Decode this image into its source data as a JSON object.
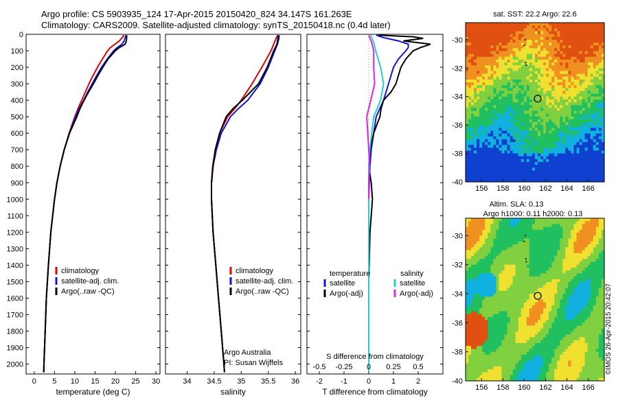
{
  "header": {
    "line1": "Argo profile: CS 5903935_124 17-Apr-2015 20150420_824 34.147S 161.263E",
    "line2": "Climatology: CARS2009. Satellite-adjusted climatology: synTS_20150418.nc (0.4d later)"
  },
  "stamp": "©IMOS 26-Apr-2015 20:42:07",
  "colors": {
    "climatology": "#e00000",
    "satellite": "#1010e0",
    "argo": "#000000",
    "salinity_sat": "#20d0d0",
    "salinity_argo": "#e020e0"
  },
  "chart_data": [
    {
      "type": "line",
      "name": "temperature-profile",
      "xlabel": "temperature (deg C)",
      "ylabel": "",
      "xlim": [
        -2,
        31
      ],
      "ylim": [
        2060,
        0
      ],
      "xticks": [
        "0",
        "5",
        "10",
        "15",
        "20",
        "25",
        "30"
      ],
      "yticks": [
        "0",
        "100",
        "200",
        "300",
        "400",
        "500",
        "600",
        "700",
        "800",
        "900",
        "1000",
        "1100",
        "1200",
        "1300",
        "1400",
        "1500",
        "1600",
        "1700",
        "1800",
        "1900",
        "2000"
      ],
      "legend": [
        "climatology",
        "satellite-adj. clim.",
        "Argo(..raw -QC)"
      ],
      "series": [
        {
          "name": "climatology",
          "color": "#e00000",
          "depth": [
            5,
            20,
            40,
            60,
            80,
            100,
            150,
            200,
            250,
            300,
            350,
            400,
            450,
            500,
            600,
            700,
            800,
            900,
            1000,
            1200,
            1400,
            1600,
            1800,
            2000,
            2050
          ],
          "values": [
            22.1,
            21.7,
            21.0,
            19.9,
            18.8,
            18.1,
            16.8,
            15.6,
            14.5,
            13.5,
            12.6,
            11.7,
            10.8,
            10.0,
            8.6,
            7.4,
            6.4,
            5.6,
            5.0,
            4.1,
            3.5,
            3.0,
            2.7,
            2.4,
            2.35
          ]
        },
        {
          "name": "satellite-adj. clim.",
          "color": "#1010e0",
          "depth": [
            5,
            20,
            40,
            60,
            80,
            100,
            150,
            200,
            250,
            300,
            350,
            400,
            450,
            500,
            600,
            700,
            800,
            900,
            1000,
            1200,
            1400,
            1600,
            1800,
            2000,
            2050
          ],
          "values": [
            22.6,
            22.4,
            22.2,
            21.6,
            20.5,
            19.6,
            18.0,
            16.6,
            15.4,
            14.3,
            13.2,
            12.2,
            11.1,
            10.2,
            8.7,
            7.4,
            6.4,
            5.6,
            5.0,
            4.1,
            3.5,
            3.0,
            2.7,
            2.4,
            2.35
          ]
        },
        {
          "name": "Argo(..raw -QC)",
          "color": "#000000",
          "depth": [
            5,
            20,
            40,
            60,
            80,
            100,
            150,
            200,
            250,
            300,
            350,
            400,
            450,
            500,
            600,
            700,
            800,
            900,
            1000,
            1200,
            1400,
            1600,
            1800,
            2000,
            2050
          ],
          "values": [
            22.8,
            22.8,
            22.7,
            22.4,
            21.0,
            20.0,
            18.2,
            16.9,
            15.7,
            14.6,
            13.4,
            12.3,
            11.3,
            10.5,
            8.7,
            7.4,
            6.4,
            5.6,
            5.0,
            4.1,
            3.5,
            3.0,
            2.7,
            2.4,
            2.35
          ]
        }
      ]
    },
    {
      "type": "line",
      "name": "salinity-profile",
      "xlabel": "salinity",
      "ylabel": "",
      "xlim": [
        33.6,
        36.1
      ],
      "ylim": [
        2060,
        0
      ],
      "xticks": [
        "34",
        "34.5",
        "35",
        "35.5",
        "36"
      ],
      "legend": [
        "climatology",
        "satellite-adj. clim.",
        "Argo(..raw -QC)"
      ],
      "annotations": [
        "Argo Australia",
        "PI: Susan Wijffels"
      ],
      "series": [
        {
          "name": "climatology",
          "color": "#e00000",
          "depth": [
            5,
            20,
            60,
            100,
            200,
            300,
            400,
            450,
            500,
            600,
            700,
            800,
            900,
            1000,
            1200,
            1400,
            1600,
            1800,
            2000,
            2050
          ],
          "values": [
            35.68,
            35.65,
            35.6,
            35.55,
            35.38,
            35.2,
            35.0,
            34.88,
            34.75,
            34.6,
            34.52,
            34.47,
            34.45,
            34.45,
            34.48,
            34.53,
            34.58,
            34.63,
            34.68,
            34.69
          ]
        },
        {
          "name": "satellite-adj. clim.",
          "color": "#1010e0",
          "depth": [
            5,
            20,
            60,
            100,
            200,
            300,
            400,
            450,
            500,
            600,
            700,
            800,
            900,
            1000,
            1200,
            1400,
            1600,
            1800,
            2000,
            2050
          ],
          "values": [
            35.7,
            35.7,
            35.67,
            35.62,
            35.5,
            35.35,
            35.12,
            34.95,
            34.8,
            34.63,
            34.54,
            34.48,
            34.45,
            34.45,
            34.48,
            34.53,
            34.58,
            34.63,
            34.68,
            34.69
          ]
        },
        {
          "name": "Argo(..raw -QC)",
          "color": "#000000",
          "depth": [
            5,
            20,
            60,
            100,
            200,
            300,
            400,
            450,
            500,
            600,
            700,
            800,
            900,
            1000,
            1200,
            1400,
            1600,
            1800,
            2000,
            2050
          ],
          "values": [
            35.68,
            35.68,
            35.66,
            35.6,
            35.48,
            35.32,
            35.02,
            34.85,
            34.72,
            34.6,
            34.52,
            34.48,
            34.45,
            34.45,
            34.48,
            34.53,
            34.58,
            34.63,
            34.68,
            34.69
          ]
        }
      ]
    },
    {
      "type": "line",
      "name": "difference-from-climatology",
      "xlabel": "T difference from climatology",
      "xlabel_top": "S difference from climatology",
      "xlim": [
        -2.5,
        3.0
      ],
      "ylim": [
        2060,
        0
      ],
      "xticks": [
        "-2",
        "-1",
        "0",
        "1",
        "2"
      ],
      "xticks_top": [
        "-0.5",
        "-0.25",
        "0",
        "0.25",
        "0.5"
      ],
      "legend_left_title": "temperature",
      "legend_right_title": "salinity",
      "legend": [
        "satellite",
        "Argo(-adj)",
        "satellite",
        "Argo(-adj)"
      ],
      "series": [
        {
          "name": "satellite",
          "quantity": "temperature",
          "color": "#1010e0",
          "depth": [
            5,
            20,
            40,
            60,
            80,
            100,
            150,
            200,
            250,
            300,
            400,
            500,
            600,
            700,
            800,
            900,
            1000,
            1200,
            1500,
            2000,
            2050
          ],
          "values": [
            0.3,
            0.6,
            1.2,
            1.6,
            1.6,
            1.5,
            1.2,
            1.0,
            0.9,
            0.8,
            0.6,
            0.3,
            0.2,
            0.1,
            0.05,
            0.02,
            0.0,
            0.0,
            0.0,
            0.0,
            0.0
          ]
        },
        {
          "name": "Argo(-adj)",
          "quantity": "temperature",
          "color": "#000000",
          "depth": [
            5,
            15,
            25,
            40,
            60,
            80,
            100,
            150,
            200,
            250,
            300,
            350,
            400,
            450,
            500,
            600,
            700,
            800,
            900,
            1000,
            1200,
            1500,
            2000,
            2050
          ],
          "values": [
            0.4,
            1.8,
            2.2,
            1.4,
            2.5,
            2.1,
            1.8,
            1.5,
            1.3,
            1.2,
            1.1,
            0.9,
            0.6,
            0.5,
            0.45,
            0.2,
            0.05,
            0.0,
            0.1,
            0.15,
            0.05,
            0.0,
            0.0,
            0.0
          ]
        },
        {
          "name": "satellite",
          "quantity": "salinity",
          "color": "#20d0d0",
          "depth": [
            5,
            50,
            100,
            200,
            300,
            400,
            500,
            600,
            700,
            800,
            900,
            1000,
            1200,
            1500,
            2000,
            2050
          ],
          "values": [
            0.02,
            0.05,
            0.07,
            0.12,
            0.15,
            0.12,
            0.05,
            0.03,
            0.01,
            0.0,
            0.0,
            0.0,
            0.0,
            0.0,
            0.0,
            0.0
          ]
        },
        {
          "name": "Argo(-adj)",
          "quantity": "salinity",
          "color": "#e020e0",
          "depth": [
            5,
            50,
            100,
            200,
            300,
            400,
            500,
            600,
            700,
            800,
            900,
            1000
          ],
          "values": [
            0.0,
            0.03,
            0.05,
            0.05,
            0.06,
            0.02,
            -0.02,
            -0.01,
            0.0,
            0.01,
            0.0,
            0.0
          ]
        }
      ]
    },
    {
      "type": "heatmap",
      "name": "sst-map",
      "title": "sat. SST: 22.2  Argo: 22.6",
      "xlim": [
        154.5,
        167.5
      ],
      "ylim": [
        -40,
        -28.8
      ],
      "xticks": [
        "156",
        "158",
        "160",
        "162",
        "164",
        "166"
      ],
      "yticks": [
        "-30",
        "-32",
        "-34",
        "-36",
        "-38",
        "-40"
      ],
      "profile_location": {
        "lon": 161.263,
        "lat": -34.147
      }
    },
    {
      "type": "heatmap",
      "name": "sla-map",
      "title_line1": "Altim. SLA: 0.13",
      "title_line2": "Argo h1000: 0.11 h2000: 0.13",
      "xlim": [
        154.5,
        167.5
      ],
      "ylim": [
        -40,
        -28.8
      ],
      "xticks": [
        "156",
        "158",
        "160",
        "162",
        "164",
        "166"
      ],
      "yticks": [
        "-30",
        "-32",
        "-34",
        "-36",
        "-38",
        "-40"
      ],
      "profile_location": {
        "lon": 161.263,
        "lat": -34.147
      }
    }
  ]
}
